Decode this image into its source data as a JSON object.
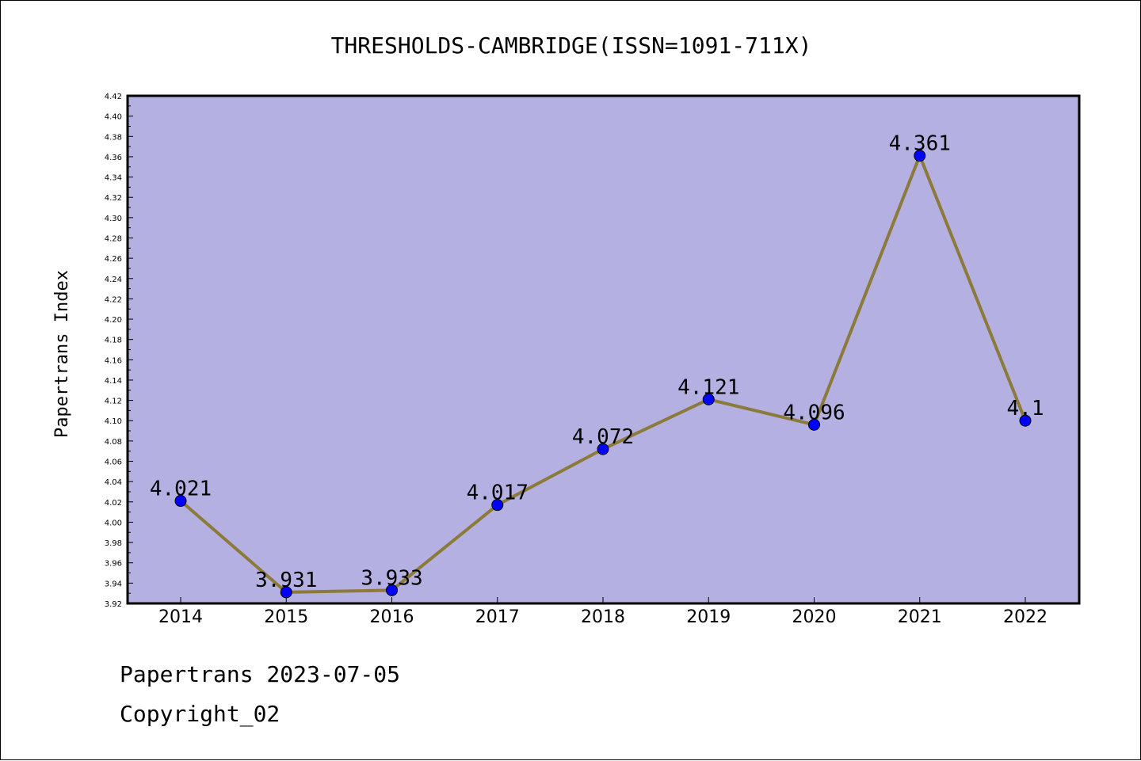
{
  "footer": {
    "line1": "Papertrans 2023-07-05",
    "line2": "Copyright_02"
  },
  "colors": {
    "plot_background": "#b5b0e2",
    "line": "#8b7a3a",
    "marker": "#0000ff",
    "axis": "#000000"
  },
  "chart_data": {
    "type": "line",
    "title": "THRESHOLDS-CAMBRIDGE(ISSN=1091-711X)",
    "xlabel": "",
    "ylabel": "Papertrans Index",
    "x": [
      "2014",
      "2015",
      "2016",
      "2017",
      "2018",
      "2019",
      "2020",
      "2021",
      "2022"
    ],
    "series": [
      {
        "values": [
          4.021,
          3.931,
          3.933,
          4.017,
          4.072,
          4.121,
          4.096,
          4.361,
          4.1
        ],
        "labels": [
          "4.021",
          "3.931",
          "3.933",
          "4.017",
          "4.072",
          "4.121",
          "4.096",
          "4.361",
          "4.1"
        ],
        "marker": "circle"
      }
    ],
    "ylim": [
      3.92,
      4.42
    ],
    "ytick_step": 0.02,
    "grid": false,
    "legend": "none"
  }
}
